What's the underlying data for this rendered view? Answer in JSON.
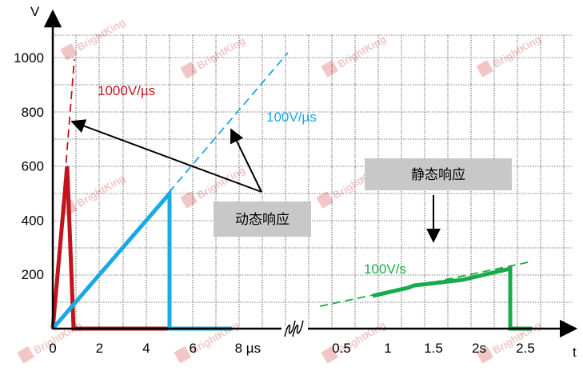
{
  "chart_data": {
    "type": "line",
    "title": "",
    "xlabel": "t",
    "ylabel": "V",
    "ylim": [
      0,
      1000
    ],
    "grid": true,
    "panels": [
      {
        "name": "dynamic",
        "x_unit": "µs",
        "xlim": [
          0,
          10
        ],
        "x_ticks": [
          {
            "value": 0,
            "label": "0"
          },
          {
            "value": 2,
            "label": "2"
          },
          {
            "value": 4,
            "label": "4"
          },
          {
            "value": 6,
            "label": "6"
          },
          {
            "value": 8,
            "label": "8 µs"
          }
        ]
      },
      {
        "name": "static",
        "x_unit": "s",
        "xlim": [
          0,
          3
        ],
        "x_ticks": [
          {
            "value": 0.5,
            "label": "0.5"
          },
          {
            "value": 1,
            "label": "1"
          },
          {
            "value": 1.5,
            "label": "1.5"
          },
          {
            "value": 2,
            "label": "2s"
          },
          {
            "value": 2.5,
            "label": "2.5"
          }
        ]
      }
    ],
    "y_ticks": [
      {
        "value": 200,
        "label": "200"
      },
      {
        "value": 400,
        "label": "400"
      },
      {
        "value": 600,
        "label": "600"
      },
      {
        "value": 800,
        "label": "800"
      },
      {
        "value": 1000,
        "label": "1000"
      }
    ],
    "series": [
      {
        "name": "1000V/µs",
        "panel": "dynamic",
        "color": "#c0141c",
        "ramp": {
          "x": [
            0,
            1
          ],
          "y": [
            0,
            1000
          ]
        },
        "points": [
          [
            0,
            0
          ],
          [
            0.6,
            600
          ],
          [
            0.85,
            0
          ],
          [
            5,
            0
          ]
        ]
      },
      {
        "name": "100V/µs",
        "panel": "dynamic",
        "color": "#1aa8e6",
        "ramp": {
          "x": [
            0,
            10
          ],
          "y": [
            0,
            1000
          ]
        },
        "points": [
          [
            0,
            0
          ],
          [
            5,
            500
          ],
          [
            5,
            0
          ],
          [
            7.7,
            0
          ]
        ]
      },
      {
        "name": "100V/s",
        "panel": "static",
        "color": "#1aaa4a",
        "ramp": {
          "x": [
            0.3,
            3
          ],
          "y": [
            80,
            250
          ]
        },
        "points": [
          [
            0.95,
            120
          ],
          [
            1.35,
            150
          ],
          [
            1.4,
            160
          ],
          [
            1.9,
            180
          ],
          [
            2.5,
            220
          ],
          [
            2.5,
            0
          ],
          [
            2.85,
            0
          ]
        ]
      }
    ],
    "annotations": {
      "dynamic_label": "动态响应",
      "static_label": "静态响应"
    },
    "colors": {
      "grid": "#000000",
      "box_fill": "#c8c8c8",
      "watermark": "#f0b8b8"
    },
    "watermark": "BrightKing"
  }
}
